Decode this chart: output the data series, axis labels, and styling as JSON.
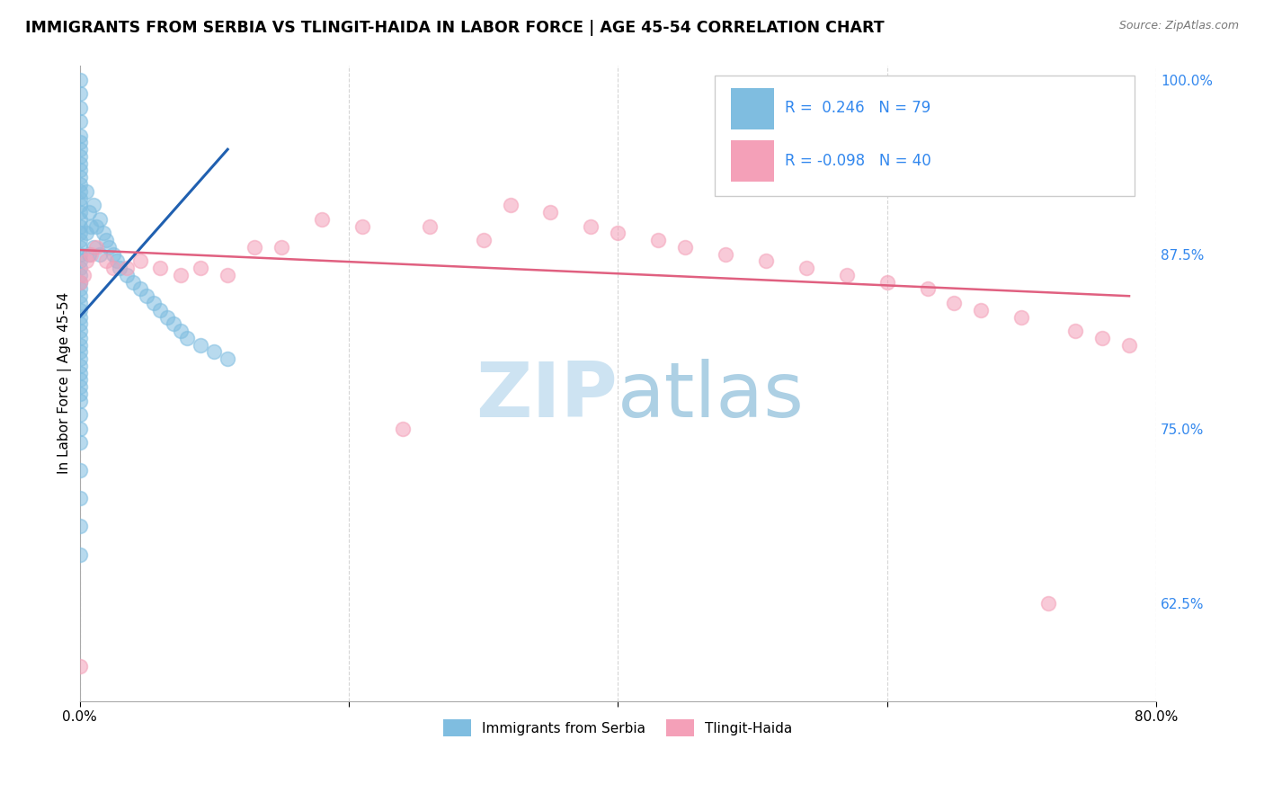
{
  "title": "IMMIGRANTS FROM SERBIA VS TLINGIT-HAIDA IN LABOR FORCE | AGE 45-54 CORRELATION CHART",
  "source_text": "Source: ZipAtlas.com",
  "ylabel": "In Labor Force | Age 45-54",
  "legend_label1": "Immigrants from Serbia",
  "legend_label2": "Tlingit-Haida",
  "R1": 0.246,
  "N1": 79,
  "R2": -0.098,
  "N2": 40,
  "xmin": 0.0,
  "xmax": 0.8,
  "ymin": 0.555,
  "ymax": 1.01,
  "yticks": [
    0.625,
    0.75,
    0.875,
    1.0
  ],
  "ytick_labels": [
    "62.5%",
    "75.0%",
    "87.5%",
    "100.0%"
  ],
  "xticks": [
    0.0,
    0.2,
    0.4,
    0.6,
    0.8
  ],
  "color_blue": "#7fbde0",
  "color_pink": "#f4a0b8",
  "color_line_blue": "#2060b0",
  "color_line_pink": "#e06080",
  "watermark_zip": "ZIP",
  "watermark_atlas": "atlas",
  "watermark_color_zip": "#c8dff0",
  "watermark_color_atlas": "#a8c8e0",
  "blue_x": [
    0.0,
    0.0,
    0.0,
    0.0,
    0.0,
    0.0,
    0.0,
    0.0,
    0.0,
    0.0,
    0.0,
    0.0,
    0.0,
    0.0,
    0.0,
    0.0,
    0.0,
    0.0,
    0.0,
    0.0,
    0.0,
    0.0,
    0.0,
    0.0,
    0.0,
    0.0,
    0.0,
    0.0,
    0.0,
    0.0,
    0.0,
    0.0,
    0.0,
    0.0,
    0.0,
    0.0,
    0.0,
    0.0,
    0.0,
    0.0,
    0.0,
    0.0,
    0.0,
    0.0,
    0.0,
    0.0,
    0.0,
    0.0,
    0.0,
    0.0,
    0.005,
    0.005,
    0.007,
    0.007,
    0.008,
    0.01,
    0.01,
    0.012,
    0.015,
    0.015,
    0.018,
    0.02,
    0.022,
    0.025,
    0.028,
    0.03,
    0.035,
    0.04,
    0.045,
    0.05,
    0.055,
    0.06,
    0.065,
    0.07,
    0.075,
    0.08,
    0.09,
    0.1,
    0.11
  ],
  "blue_y": [
    1.0,
    0.99,
    0.98,
    0.97,
    0.96,
    0.955,
    0.95,
    0.945,
    0.94,
    0.935,
    0.93,
    0.925,
    0.92,
    0.915,
    0.91,
    0.905,
    0.9,
    0.895,
    0.89,
    0.885,
    0.88,
    0.875,
    0.87,
    0.865,
    0.86,
    0.855,
    0.85,
    0.845,
    0.84,
    0.835,
    0.83,
    0.825,
    0.82,
    0.815,
    0.81,
    0.805,
    0.8,
    0.795,
    0.79,
    0.785,
    0.78,
    0.775,
    0.77,
    0.76,
    0.75,
    0.74,
    0.72,
    0.7,
    0.68,
    0.66,
    0.92,
    0.89,
    0.905,
    0.875,
    0.895,
    0.91,
    0.88,
    0.895,
    0.9,
    0.875,
    0.89,
    0.885,
    0.88,
    0.875,
    0.87,
    0.865,
    0.86,
    0.855,
    0.85,
    0.845,
    0.84,
    0.835,
    0.83,
    0.825,
    0.82,
    0.815,
    0.81,
    0.805,
    0.8
  ],
  "pink_x": [
    0.0,
    0.0,
    0.003,
    0.005,
    0.008,
    0.012,
    0.02,
    0.025,
    0.035,
    0.045,
    0.06,
    0.075,
    0.09,
    0.11,
    0.13,
    0.15,
    0.18,
    0.21,
    0.24,
    0.26,
    0.3,
    0.32,
    0.35,
    0.38,
    0.4,
    0.43,
    0.45,
    0.48,
    0.51,
    0.54,
    0.57,
    0.6,
    0.63,
    0.65,
    0.67,
    0.7,
    0.72,
    0.74,
    0.76,
    0.78
  ],
  "pink_y": [
    0.855,
    0.58,
    0.86,
    0.87,
    0.875,
    0.88,
    0.87,
    0.865,
    0.865,
    0.87,
    0.865,
    0.86,
    0.865,
    0.86,
    0.88,
    0.88,
    0.9,
    0.895,
    0.75,
    0.895,
    0.885,
    0.91,
    0.905,
    0.895,
    0.89,
    0.885,
    0.88,
    0.875,
    0.87,
    0.865,
    0.86,
    0.855,
    0.85,
    0.84,
    0.835,
    0.83,
    0.625,
    0.82,
    0.815,
    0.81
  ],
  "blue_trendline_x": [
    0.0,
    0.11
  ],
  "blue_trendline_y": [
    0.83,
    0.95
  ],
  "pink_trendline_x": [
    0.0,
    0.78
  ],
  "pink_trendline_y": [
    0.878,
    0.845
  ]
}
